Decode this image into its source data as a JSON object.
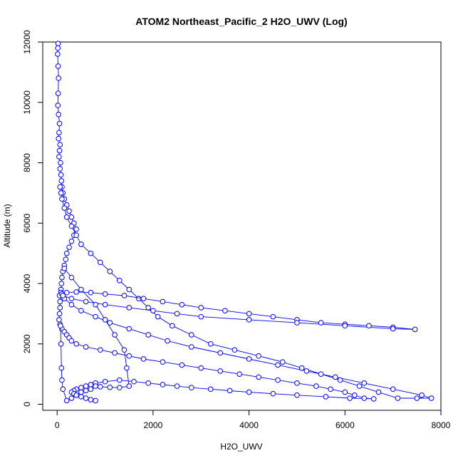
{
  "chart_data": {
    "type": "line",
    "title": "ATOM2 Northeast_Pacific_2 H2O_UWV (Log)",
    "xlabel": "H2O_UWV",
    "ylabel": "Altitude (m)",
    "xlim": [
      -300,
      8000
    ],
    "ylim": [
      -200,
      12000
    ],
    "xticks": [
      0,
      2000,
      4000,
      6000,
      8000
    ],
    "yticks": [
      0,
      2000,
      4000,
      6000,
      8000,
      10000,
      12000
    ],
    "grid": false,
    "legend": "none",
    "color": "#0000FF",
    "marker": "open-circle",
    "series": [
      {
        "x": [
          20,
          15,
          10,
          20,
          30,
          20,
          15,
          30,
          50,
          40,
          30,
          60,
          50,
          40,
          70,
          60,
          80,
          90,
          100,
          120,
          150,
          200,
          250,
          300,
          350,
          400,
          350,
          300,
          250,
          200,
          180,
          150,
          120,
          100,
          90,
          80,
          70,
          60,
          60,
          50,
          40,
          60,
          100,
          150,
          200,
          250,
          300,
          400,
          600,
          900,
          1200,
          1500,
          1800,
          2200,
          2600,
          3000,
          3400,
          3800,
          4200,
          4600,
          5000,
          5400,
          5700,
          6000,
          6200,
          6400,
          6600,
          6100,
          5600,
          5000,
          4500,
          4000,
          3600,
          3200,
          2800,
          2500,
          2200,
          1900,
          1600,
          1300,
          1000,
          800,
          700,
          600,
          500,
          400,
          350,
          300,
          350,
          400,
          500,
          600,
          700,
          800
        ],
        "y": [
          11950,
          11800,
          11600,
          11200,
          10800,
          10300,
          9900,
          9600,
          9300,
          9000,
          8800,
          8600,
          8400,
          8200,
          8000,
          7800,
          7600,
          7400,
          7200,
          7000,
          6800,
          6600,
          6400,
          6200,
          6000,
          5800,
          5600,
          5400,
          5200,
          5000,
          4800,
          4600,
          4400,
          4200,
          4000,
          3800,
          3600,
          3400,
          3200,
          3000,
          2800,
          2650,
          2500,
          2400,
          2300,
          2200,
          2100,
          2000,
          1900,
          1800,
          1700,
          1600,
          1500,
          1400,
          1300,
          1200,
          1100,
          1000,
          900,
          800,
          700,
          600,
          500,
          400,
          300,
          200,
          180,
          200,
          250,
          300,
          350,
          400,
          450,
          500,
          550,
          600,
          650,
          700,
          750,
          800,
          750,
          700,
          650,
          600,
          550,
          500,
          450,
          400,
          350,
          300,
          250,
          200,
          150,
          120
        ]
      },
      {
        "x": [
          60,
          80,
          100,
          150,
          200,
          300,
          400,
          500,
          700,
          900,
          1100,
          1300,
          1500,
          1700,
          1900,
          2100,
          2400,
          2800,
          3200,
          3700,
          4200,
          4700,
          5100,
          5500,
          5900,
          6300,
          6700,
          7100,
          7500,
          7800,
          7600,
          7000,
          6400,
          5800,
          5200,
          4600,
          4000,
          3400,
          2800,
          2300,
          1900,
          1500,
          1100,
          800,
          500,
          300,
          150,
          80
        ],
        "y": [
          7200,
          7000,
          6800,
          6500,
          6200,
          5900,
          5600,
          5300,
          5000,
          4700,
          4400,
          4100,
          3800,
          3500,
          3200,
          2900,
          2600,
          2300,
          2000,
          1800,
          1600,
          1400,
          1200,
          1000,
          800,
          600,
          400,
          200,
          200,
          200,
          300,
          500,
          700,
          900,
          1100,
          1300,
          1500,
          1700,
          1900,
          2100,
          2300,
          2500,
          2700,
          2900,
          3100,
          3300,
          3500,
          3700
        ]
      },
      {
        "x": [
          50,
          100,
          200,
          400,
          700,
          1000,
          1400,
          1800,
          2200,
          2600,
          3000,
          3500,
          4000,
          4500,
          5000,
          5500,
          6000,
          6500,
          7000,
          7460,
          7000,
          6000,
          5000,
          4000,
          3000,
          2500,
          2000,
          1500,
          1000,
          600,
          300,
          120
        ],
        "y": [
          3600,
          3650,
          3700,
          3720,
          3700,
          3650,
          3600,
          3500,
          3400,
          3300,
          3200,
          3100,
          3000,
          2900,
          2800,
          2700,
          2650,
          2600,
          2550,
          2480,
          2500,
          2600,
          2700,
          2800,
          2900,
          3000,
          3100,
          3200,
          3300,
          3400,
          3500,
          3600
        ]
      },
      {
        "x": [
          150,
          300,
          500,
          800,
          1000,
          1200,
          1400,
          1450,
          1500,
          1300,
          1100,
          900,
          800,
          700,
          600,
          500,
          400,
          300,
          200,
          120,
          100,
          90,
          80,
          70
        ],
        "y": [
          4500,
          4200,
          3800,
          3300,
          2800,
          2300,
          1800,
          1200,
          600,
          550,
          560,
          580,
          600,
          500,
          450,
          400,
          300,
          200,
          120,
          500,
          800,
          1200,
          2000,
          2600
        ]
      }
    ]
  }
}
